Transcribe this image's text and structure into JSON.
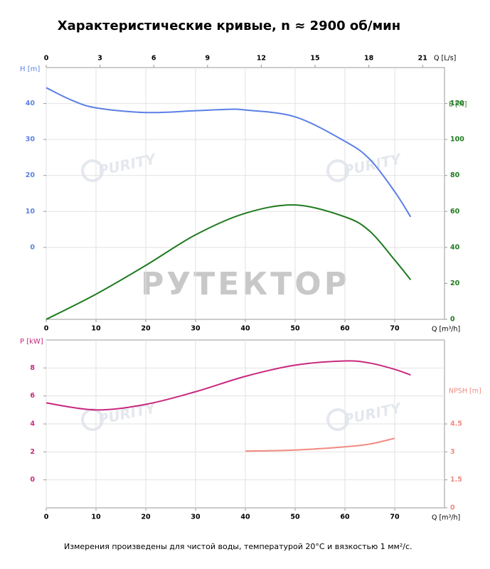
{
  "title": "Характеристические кривые, n ≈ 2900 об/мин",
  "footnote": "Измерения произведены для чистой воды, температурой 20°C и вязкостью 1 мм²/с.",
  "watermark": "РУТЕКТОР",
  "logo": "PURITY",
  "chart_data": [
    {
      "type": "line",
      "grid": true,
      "xlabel": "Q [m³/h]",
      "x2label": "Q [L/s]",
      "ylabel": "H [m]",
      "y2label": "E [%]",
      "xlim": [
        0,
        80
      ],
      "xticks": [
        0,
        10,
        20,
        30,
        40,
        50,
        60,
        70
      ],
      "x2lim": [
        0,
        22.22
      ],
      "x2ticks": [
        0,
        3,
        6,
        9,
        12,
        15,
        18,
        21
      ],
      "ylim": [
        -20,
        50
      ],
      "yticks": [
        0,
        10,
        20,
        30,
        40
      ],
      "y2lim": [
        0,
        140
      ],
      "y2ticks": [
        0,
        20,
        40,
        60,
        80,
        100,
        120
      ],
      "series": [
        {
          "name": "H",
          "color": "#5b7fe6",
          "x": [
            0,
            5,
            10,
            20,
            30,
            37,
            40,
            50,
            60,
            65,
            70,
            73.2
          ],
          "values": [
            44.4,
            41,
            38.8,
            37.5,
            38,
            38.4,
            38.2,
            36.3,
            29.5,
            24.5,
            15.5,
            8.5
          ]
        },
        {
          "name": "E",
          "color": "#1e7a1e",
          "axis": "y2",
          "x": [
            0,
            10,
            20,
            30,
            40,
            50,
            60,
            65,
            70,
            73.2
          ],
          "values": [
            0,
            14,
            30,
            47,
            59,
            63.6,
            57,
            49,
            33,
            22
          ]
        }
      ]
    },
    {
      "type": "line",
      "grid": true,
      "xlabel": "Q [m³/h]",
      "ylabel": "P [kW]",
      "y2label": "NPSH [m]",
      "xlim": [
        0,
        80
      ],
      "xticks": [
        0,
        10,
        20,
        30,
        40,
        50,
        60,
        70
      ],
      "ylim": [
        -2,
        10
      ],
      "yticks": [
        0,
        2,
        4,
        6,
        8
      ],
      "y2lim": [
        0,
        9
      ],
      "y2ticks": [
        0,
        1.5,
        3,
        4.5
      ],
      "series": [
        {
          "name": "P",
          "color": "#c8287f",
          "x": [
            0,
            10,
            20,
            30,
            40,
            50,
            60,
            65,
            70,
            73.2
          ],
          "values": [
            5.5,
            5.0,
            5.4,
            6.3,
            7.4,
            8.2,
            8.5,
            8.35,
            7.9,
            7.5
          ]
        },
        {
          "name": "NPSH",
          "color": "#f08a80",
          "axis": "y2",
          "x": [
            40,
            50,
            60,
            65,
            70
          ],
          "values": [
            3.04,
            3.1,
            3.27,
            3.42,
            3.73
          ]
        }
      ]
    }
  ]
}
